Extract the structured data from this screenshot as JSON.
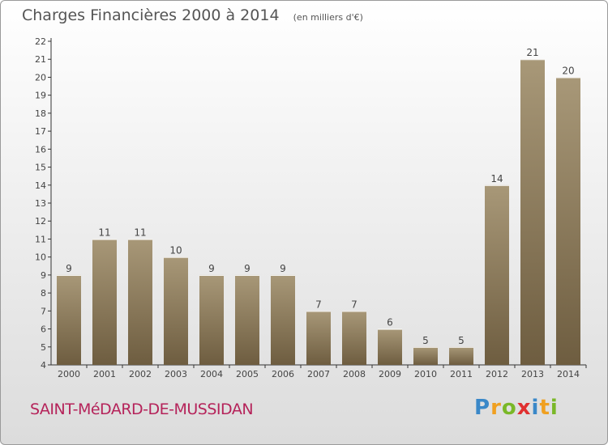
{
  "title": "Charges Financières 2000 à 2014",
  "subtitle": "(en milliers d'€)",
  "commune": "SAINT-MéDARD-DE-MUSSIDAN",
  "logo": {
    "letters": [
      "P",
      "r",
      "o",
      "x",
      "i",
      "t",
      "i"
    ],
    "colors": [
      "#3a88c8",
      "#f0a020",
      "#7ab828",
      "#e03030",
      "#3a88c8",
      "#f0a020",
      "#7ab828"
    ]
  },
  "colors": {
    "bar_top": "#a89878",
    "bar_bottom": "#6e5d40",
    "text": "#444444"
  },
  "chart_data": {
    "type": "bar",
    "title": "Charges Financières 2000 à 2014",
    "subtitle": "(en milliers d'€)",
    "categories": [
      "2000",
      "2001",
      "2002",
      "2003",
      "2004",
      "2005",
      "2006",
      "2007",
      "2008",
      "2009",
      "2010",
      "2011",
      "2012",
      "2013",
      "2014"
    ],
    "values": [
      9,
      11,
      11,
      10,
      9,
      9,
      9,
      7,
      7,
      6,
      5,
      5,
      14,
      21,
      20
    ],
    "ylim": [
      4,
      22
    ],
    "yticks": [
      4,
      5,
      6,
      7,
      8,
      9,
      10,
      11,
      12,
      13,
      14,
      15,
      16,
      17,
      18,
      19,
      20,
      21,
      22
    ],
    "grid": false,
    "legend": "none"
  }
}
